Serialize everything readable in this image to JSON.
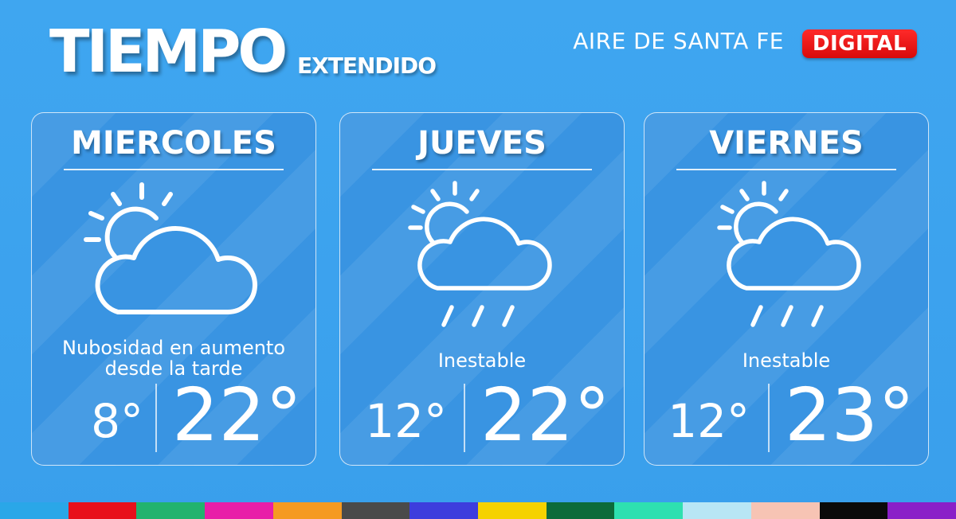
{
  "header": {
    "title": "TIEMPO",
    "subtitle": "EXTENDIDO",
    "brand": "AIRE DE SANTA FE",
    "badge": "DIGITAL"
  },
  "days": [
    {
      "name": "MIERCOLES",
      "icon": "partly-cloudy-icon",
      "description_line1": "Nubosidad en aumento",
      "description_line2": "desde la tarde",
      "low": "8°",
      "high": "22°"
    },
    {
      "name": "JUEVES",
      "icon": "rain-cloud-sun-icon",
      "description_line1": "Inestable",
      "low": "12°",
      "high": "22°"
    },
    {
      "name": "VIERNES",
      "icon": "rain-cloud-sun-icon",
      "description_line1": "Inestable",
      "low": "12°",
      "high": "23°"
    }
  ],
  "colors": {
    "background": "#3fa6f0",
    "badge": "#e01010",
    "strip": [
      "#2aa7e8",
      "#e8101a",
      "#22b36e",
      "#e81ea8",
      "#f59a22",
      "#4a4a4a",
      "#3d3ddd",
      "#f5d200",
      "#0c6b3a",
      "#2ee0b0",
      "#b8e6f5",
      "#f7c4b4",
      "#0a0a0a",
      "#8a1fc8"
    ]
  }
}
